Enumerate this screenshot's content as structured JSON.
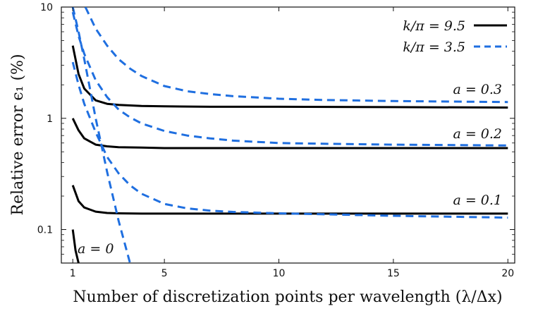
{
  "chart_data": {
    "type": "line",
    "title": "",
    "xlabel": "Number of discretization points per wavelength (λ/Δx)",
    "ylabel": "Relative error ϵ₁ (%)",
    "xlim": [
      0.5,
      20.3
    ],
    "ylim": [
      0.05,
      10
    ],
    "yscale": "log",
    "x_ticks": [
      1,
      5,
      10,
      15,
      20
    ],
    "x_tick_labels": [
      "1",
      "5",
      "10",
      "15",
      "20"
    ],
    "y_ticks": [
      0.1,
      1,
      10
    ],
    "y_tick_labels": [
      "0.1",
      "1",
      "10"
    ],
    "grid": false,
    "legend": {
      "position": "top-right",
      "entries": [
        {
          "label": "k/π = 9.5",
          "color": "#000000",
          "dash": "solid"
        },
        {
          "label": "k/π = 3.5",
          "color": "#1f6fe0",
          "dash": "dashed"
        }
      ]
    },
    "annotations": [
      "a = 0.3",
      "a = 0.2",
      "a = 0.1",
      "a = 0"
    ],
    "series": [
      {
        "group": "k/π = 9.5",
        "a": "0.3",
        "color": "#000000",
        "dash": "solid",
        "x": [
          1,
          1.25,
          1.5,
          2,
          2.5,
          3,
          4,
          5,
          7,
          10,
          15,
          20
        ],
        "y": [
          4.5,
          2.5,
          1.85,
          1.45,
          1.35,
          1.32,
          1.29,
          1.28,
          1.27,
          1.27,
          1.26,
          1.25
        ]
      },
      {
        "group": "k/π = 9.5",
        "a": "0.2",
        "color": "#000000",
        "dash": "solid",
        "x": [
          1,
          1.25,
          1.5,
          2,
          2.5,
          3,
          4,
          5,
          7,
          10,
          15,
          20
        ],
        "y": [
          1.0,
          0.78,
          0.66,
          0.58,
          0.56,
          0.55,
          0.545,
          0.54,
          0.54,
          0.54,
          0.54,
          0.54
        ]
      },
      {
        "group": "k/π = 9.5",
        "a": "0.1",
        "color": "#000000",
        "dash": "solid",
        "x": [
          1,
          1.25,
          1.5,
          2,
          2.5,
          3,
          4,
          5,
          7,
          10,
          15,
          20
        ],
        "y": [
          0.25,
          0.18,
          0.158,
          0.145,
          0.141,
          0.14,
          0.139,
          0.139,
          0.139,
          0.139,
          0.139,
          0.139
        ]
      },
      {
        "group": "k/π = 9.5",
        "a": "0",
        "color": "#000000",
        "dash": "solid",
        "x": [
          1,
          1.12,
          1.25
        ],
        "y": [
          0.1,
          0.065,
          0.05
        ]
      },
      {
        "group": "k/π = 3.5",
        "a": "0.3",
        "color": "#1f6fe0",
        "dash": "dashed",
        "x": [
          1.55,
          2,
          2.5,
          3,
          3.5,
          4,
          5,
          6,
          7,
          8,
          10,
          12,
          15,
          20
        ],
        "y": [
          10,
          6.4,
          4.5,
          3.4,
          2.8,
          2.4,
          1.95,
          1.75,
          1.65,
          1.58,
          1.5,
          1.46,
          1.43,
          1.4
        ]
      },
      {
        "group": "k/π = 3.5",
        "a": "0.2",
        "color": "#1f6fe0",
        "dash": "dashed",
        "x": [
          1,
          1.25,
          1.5,
          2,
          2.5,
          3,
          3.5,
          4,
          5,
          6,
          7,
          8,
          10,
          12,
          15,
          20
        ],
        "y": [
          9.0,
          5.5,
          3.8,
          2.2,
          1.55,
          1.2,
          1.02,
          0.9,
          0.77,
          0.7,
          0.66,
          0.63,
          0.6,
          0.59,
          0.58,
          0.57
        ]
      },
      {
        "group": "k/π = 3.5",
        "a": "0.1",
        "color": "#1f6fe0",
        "dash": "dashed",
        "x": [
          1,
          1.25,
          1.5,
          2,
          2.5,
          3,
          3.5,
          4,
          5,
          6,
          7,
          8,
          10,
          12,
          15,
          20
        ],
        "y": [
          3.2,
          2.0,
          1.35,
          0.75,
          0.45,
          0.32,
          0.25,
          0.21,
          0.17,
          0.155,
          0.148,
          0.144,
          0.14,
          0.137,
          0.133,
          0.128
        ]
      },
      {
        "group": "k/π = 3.5",
        "a": "0",
        "color": "#1f6fe0",
        "dash": "dashed",
        "x": [
          1,
          1.25,
          1.5,
          2,
          2.5,
          3,
          3.5
        ],
        "y": [
          10,
          6.0,
          3.4,
          1.0,
          0.33,
          0.12,
          0.05
        ]
      }
    ]
  }
}
